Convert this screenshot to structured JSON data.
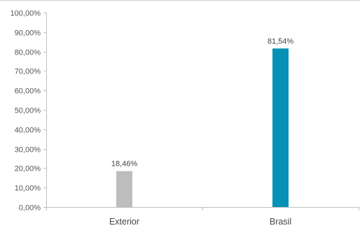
{
  "chart_data": {
    "type": "bar",
    "categories": [
      "Exterior",
      "Brasil"
    ],
    "values": [
      18.46,
      81.54
    ],
    "data_labels": [
      "18,46%",
      "81,54%"
    ],
    "colors": [
      "#bdbdbd",
      "#0590b5"
    ],
    "ylim": [
      0,
      100
    ],
    "ytick_values": [
      0,
      10,
      20,
      30,
      40,
      50,
      60,
      70,
      80,
      90,
      100
    ],
    "ytick_labels": [
      "0,00%",
      "10,00%",
      "20,00%",
      "30,00%",
      "40,00%",
      "50,00%",
      "60,00%",
      "70,00%",
      "80,00%",
      "90,00%",
      "100,00%"
    ],
    "grid": false,
    "title": "",
    "xlabel": "",
    "ylabel": ""
  }
}
